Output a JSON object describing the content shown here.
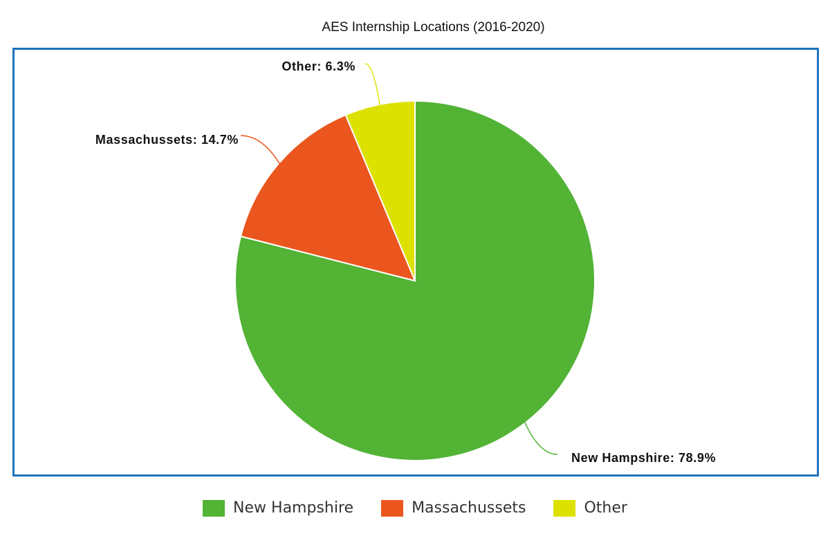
{
  "chart_data": {
    "type": "pie",
    "title": "AES Internship Locations (2016-2020)",
    "slices": [
      {
        "name": "New Hampshire",
        "value": 78.9,
        "label": "New Hampshire: 78.9%",
        "color": "#52b335"
      },
      {
        "name": "Massachussets",
        "value": 14.7,
        "label": "Massachussets: 14.7%",
        "color": "#eb561e"
      },
      {
        "name": "Other",
        "value": 6.3,
        "label": "Other: 6.3%",
        "color": "#dde100"
      }
    ],
    "legend": {
      "position": "bottom",
      "items": [
        "New Hampshire",
        "Massachussets",
        "Other"
      ]
    }
  }
}
